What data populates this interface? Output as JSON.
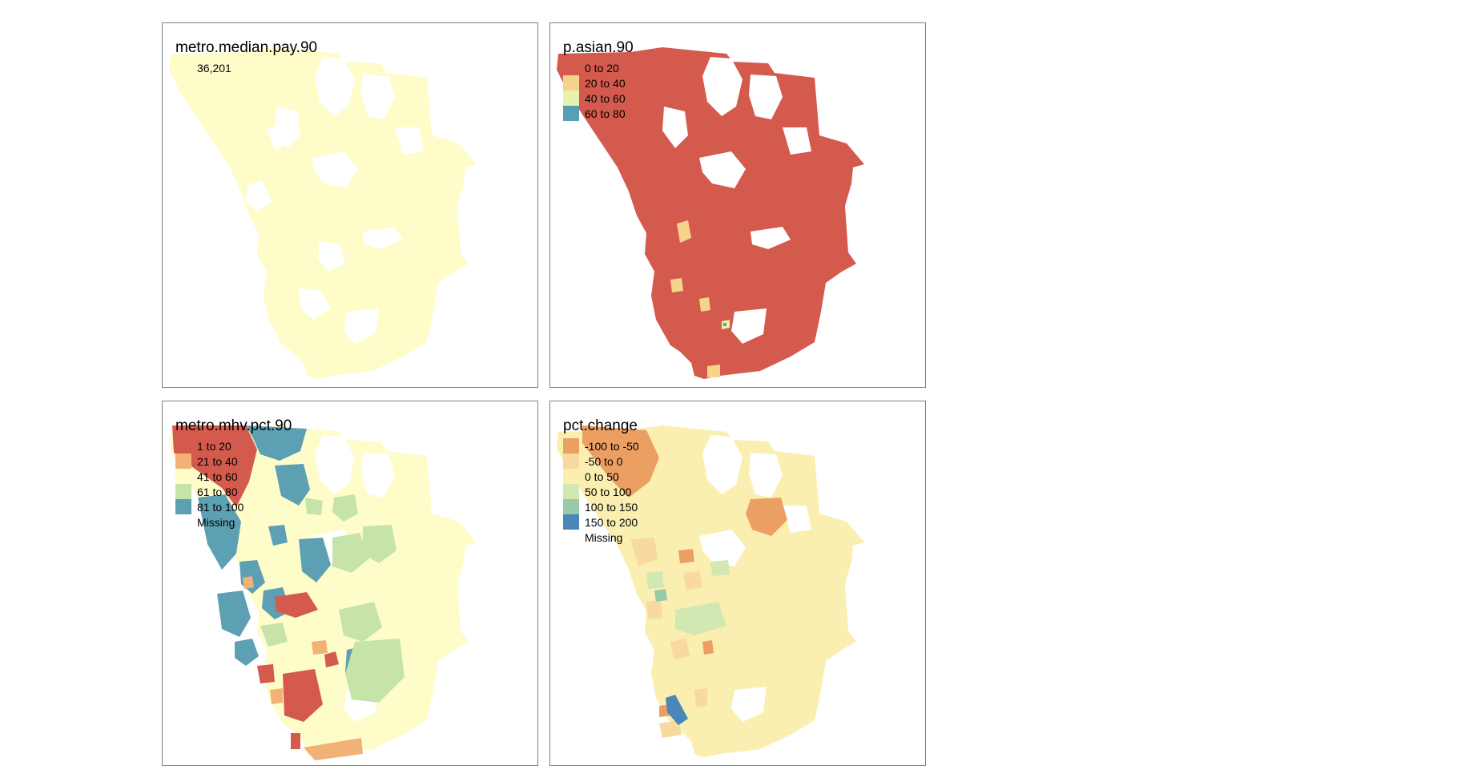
{
  "panels": [
    {
      "id": "tl",
      "legend_title": "metro.median.pay.90",
      "legend": [
        {
          "label": "36,201",
          "color": null
        }
      ],
      "base_color": "#fefcc9"
    },
    {
      "id": "tr",
      "legend_title": "p.asian.90",
      "legend": [
        {
          "label": "0 to 20",
          "color": "#d45a4e"
        },
        {
          "label": "20 to 40",
          "color": "#f6d48c"
        },
        {
          "label": "40 to 60",
          "color": "#e7f2b0"
        },
        {
          "label": "60 to 80",
          "color": "#5a9eb6"
        }
      ],
      "base_color": "#d45a4e"
    },
    {
      "id": "bl",
      "legend_title": "metro.mhv.pct.90",
      "legend": [
        {
          "label": "1 to 20",
          "color": "#d45a4e"
        },
        {
          "label": "21 to 40",
          "color": "#f2b176"
        },
        {
          "label": "41 to 60",
          "color": "#fefcc9"
        },
        {
          "label": "61 to 80",
          "color": "#c6e3aa"
        },
        {
          "label": "81 to 100",
          "color": "#5d9fb3"
        },
        {
          "label": "Missing",
          "color": null
        }
      ],
      "base_color": "#fefcc9"
    },
    {
      "id": "br",
      "legend_title": "pct.change",
      "legend": [
        {
          "label": "-100 to -50",
          "color": "#ec9f62"
        },
        {
          "label": "-50 to 0",
          "color": "#f8d9a0"
        },
        {
          "label": "0 to 50",
          "color": "#fbefb0"
        },
        {
          "label": "50 to 100",
          "color": "#d2e8b3"
        },
        {
          "label": "100 to 150",
          "color": "#98c9a8"
        },
        {
          "label": "150 to 200",
          "color": "#4a87b8"
        },
        {
          "label": "Missing",
          "color": null
        }
      ],
      "base_color": "#faeeb0"
    }
  ]
}
